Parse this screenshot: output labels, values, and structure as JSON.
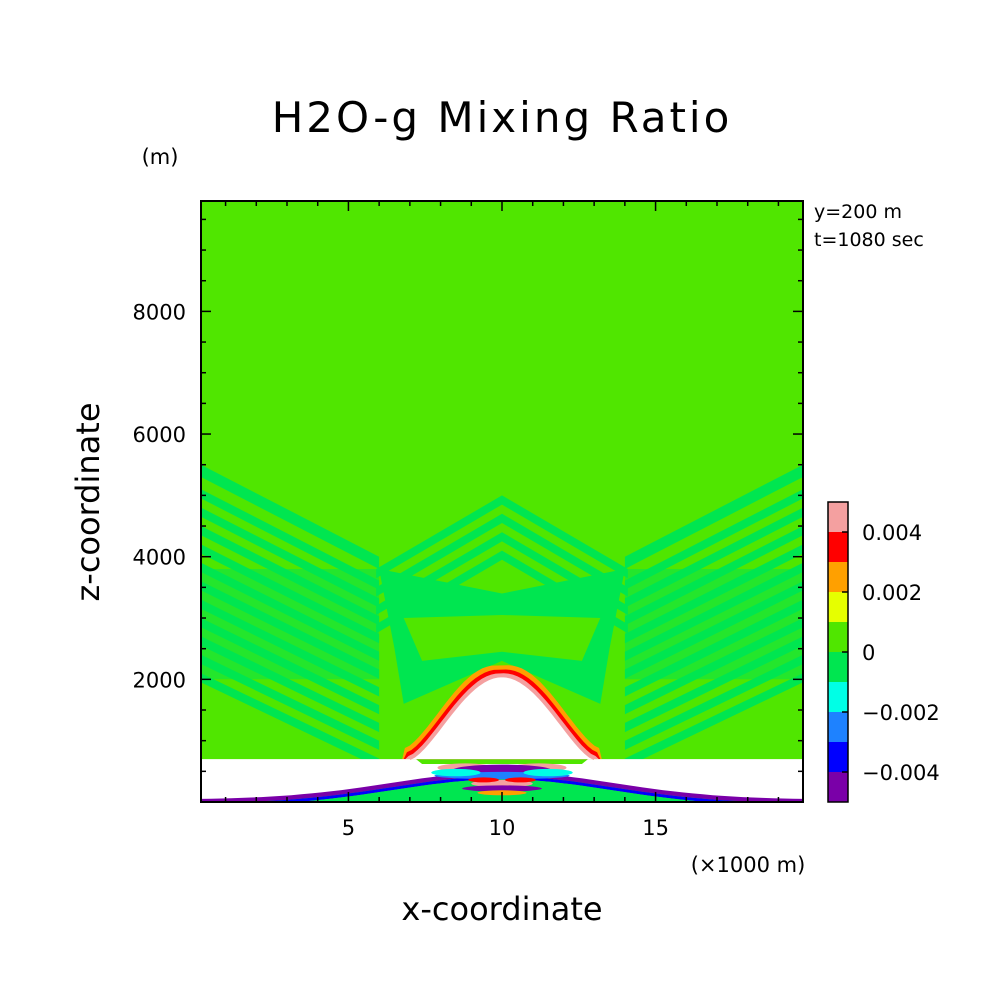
{
  "chart_data": {
    "type": "heatmap",
    "title": "H2O-g Mixing Ratio",
    "xlabel": "x-coordinate",
    "ylabel": "z-coordinate",
    "x_unit": "(×1000 m)",
    "y_unit": "(m)",
    "xlim": [
      0.2,
      19.8
    ],
    "ylim": [
      0,
      9800
    ],
    "x_ticks": [
      5,
      10,
      15
    ],
    "y_ticks": [
      2000,
      4000,
      6000,
      8000
    ],
    "x_tick_labels": [
      "5",
      "10",
      "15"
    ],
    "y_tick_labels": [
      "2000",
      "4000",
      "6000",
      "8000"
    ],
    "annotations": [
      "y=200 m",
      "t=1080 sec"
    ],
    "colorbar": {
      "levels": [
        -0.005,
        -0.004,
        -0.003,
        -0.002,
        -0.001,
        0,
        0.001,
        0.002,
        0.003,
        0.004,
        0.005
      ],
      "colors": [
        "#7a00a8",
        "#0000ff",
        "#1e82ff",
        "#00ffe6",
        "#00e650",
        "#50e600",
        "#e6ff00",
        "#ffa000",
        "#ff0000",
        "#f4a0a0"
      ],
      "tick_values": [
        -0.004,
        -0.002,
        0,
        0.002,
        0.004
      ],
      "tick_labels": [
        "−0.004",
        "−0.002",
        "0",
        "0.002",
        "0.004"
      ]
    },
    "background_value": 0.0005,
    "wave_region": {
      "center_x": 10,
      "band_levels": [
        -0.0005,
        0.0005
      ],
      "lee_wave_top_z": 5500,
      "apex_z": 5000,
      "low_z": 1900
    },
    "terrain": {
      "description_value": "masked",
      "dome_center_x": 10,
      "dome_half_width_x": 3,
      "dome_peak_z": 2050,
      "flat_top_z": 700,
      "mountain_peak_z": 450
    }
  }
}
